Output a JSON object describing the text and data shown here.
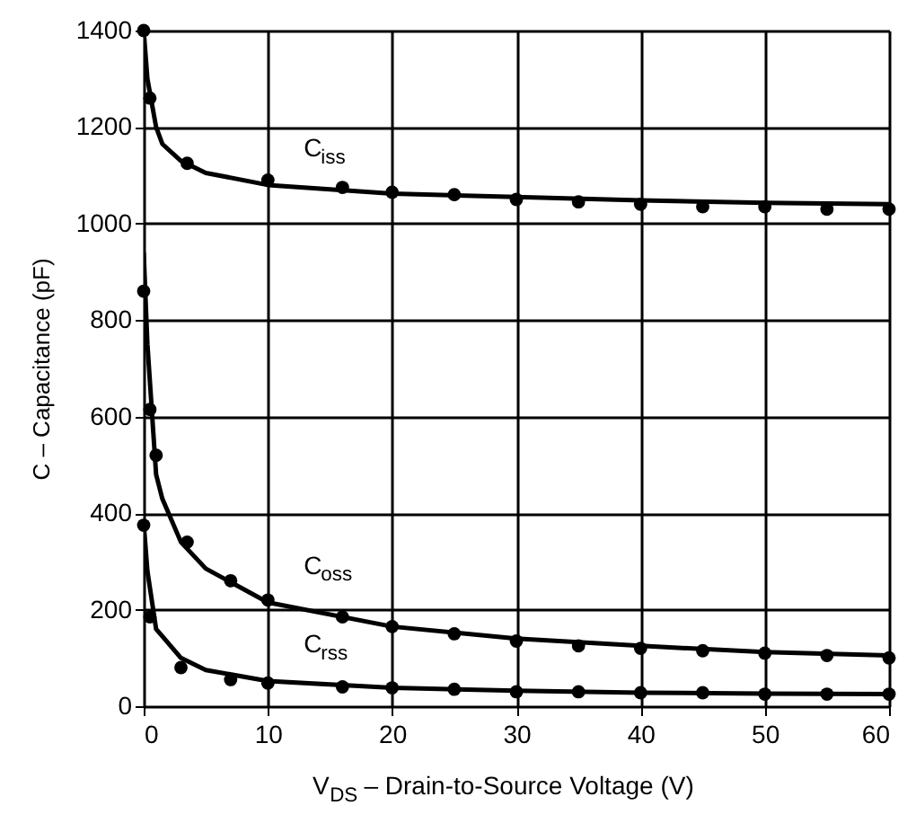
{
  "chart_data": {
    "type": "line",
    "xlabel": "V$_{DS}$ – Drain-to-Source Voltage (V)",
    "ylabel": "C – Capacitance (pF)",
    "xlim": [
      0,
      60
    ],
    "xticks": [
      0,
      10,
      20,
      30,
      40,
      50,
      60
    ],
    "ylim": [
      0,
      1400
    ],
    "yticks": [
      0,
      200,
      400,
      600,
      800,
      1000,
      1200,
      1400
    ],
    "grid": true,
    "legend": false,
    "line_style": "solid",
    "series": [
      {
        "type": "line",
        "name": "C$_{iss}$",
        "color": "#000000",
        "marker": "none",
        "x": [
          0,
          0.3,
          1,
          1.5,
          3,
          5,
          10,
          20,
          30,
          40,
          50,
          60
        ],
        "values": [
          1400,
          1300,
          1200,
          1165,
          1130,
          1105,
          1080,
          1062,
          1055,
          1048,
          1043,
          1040
        ]
      },
      {
        "type": "line",
        "name": "C$_{oss}$",
        "color": "#000000",
        "marker": "none",
        "x": [
          0,
          0.3,
          1,
          1.5,
          3,
          5,
          10,
          20,
          30,
          40,
          50,
          60
        ],
        "values": [
          940,
          750,
          480,
          430,
          340,
          285,
          215,
          165,
          140,
          125,
          112,
          105
        ]
      },
      {
        "type": "line",
        "name": "C$_{rss}$",
        "color": "#000000",
        "marker": "none",
        "x": [
          0,
          0.3,
          1,
          1.5,
          3,
          5,
          10,
          20,
          30,
          40,
          50,
          60
        ],
        "values": [
          380,
          280,
          160,
          145,
          100,
          75,
          52,
          38,
          32,
          28,
          26,
          25
        ]
      },
      {
        "type": "scatter",
        "color": "#000000",
        "marker": "circle",
        "x": [
          0,
          0.5,
          3.5,
          10,
          16,
          20,
          25,
          30,
          35,
          40,
          45,
          50,
          55,
          60
        ],
        "values": [
          1400,
          1260,
          1125,
          1090,
          1075,
          1065,
          1060,
          1050,
          1045,
          1040,
          1035,
          1035,
          1030,
          1030
        ]
      },
      {
        "type": "scatter",
        "color": "#000000",
        "marker": "circle",
        "x": [
          0,
          0.5,
          1,
          3.5,
          7,
          10,
          16,
          20,
          25,
          30,
          35,
          40,
          45,
          50,
          55,
          60
        ],
        "values": [
          860,
          615,
          520,
          340,
          260,
          220,
          185,
          165,
          150,
          135,
          125,
          120,
          115,
          110,
          105,
          100
        ]
      },
      {
        "type": "scatter",
        "color": "#000000",
        "marker": "circle",
        "x": [
          0,
          0.5,
          3,
          7,
          10,
          16,
          20,
          25,
          30,
          35,
          40,
          45,
          50,
          55,
          60
        ],
        "values": [
          375,
          185,
          80,
          55,
          48,
          40,
          38,
          35,
          30,
          30,
          28,
          28,
          25,
          25,
          25
        ]
      }
    ]
  }
}
